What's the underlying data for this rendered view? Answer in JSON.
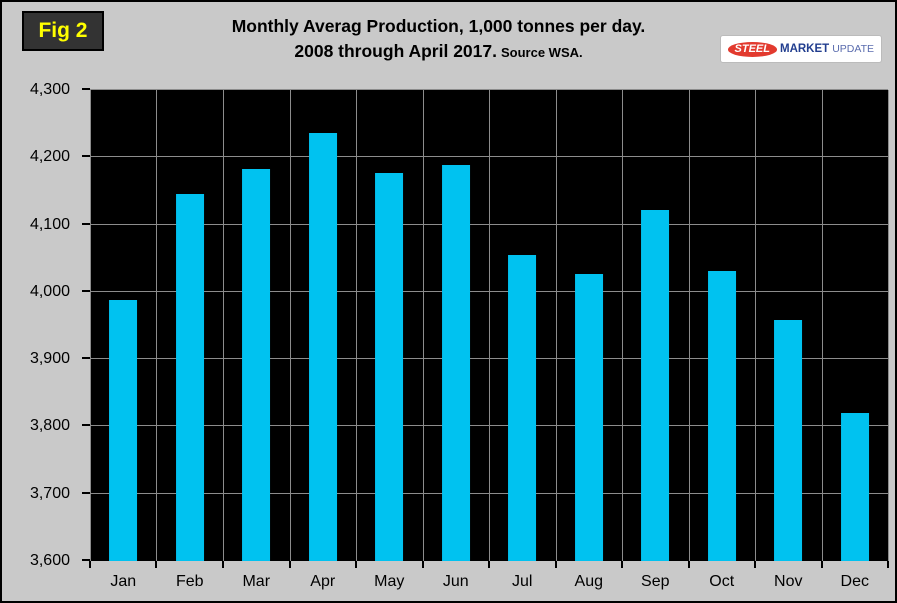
{
  "figure_label": "Fig 2",
  "header": {
    "title_line1": "Monthly Averag Production, 1,000 tonnes per day.",
    "title_line2": "2008 through April 2017.",
    "source": "Source WSA."
  },
  "logo": {
    "steel": "STEEL",
    "market": "MARKET",
    "update": "UPDATE"
  },
  "colors": {
    "bar": "#00C2F0",
    "plot_bg": "#000000",
    "grid": "#8C8C8C",
    "page_bg": "#C9C9C9",
    "fig_label_bg": "#333333",
    "fig_label_text": "#FFFF00"
  },
  "chart_data": {
    "type": "bar",
    "title": "Monthly Averag Production, 1,000 tonnes per day. 2008 through April 2017. Source WSA.",
    "categories": [
      "Jan",
      "Feb",
      "Mar",
      "Apr",
      "May",
      "Jun",
      "Jul",
      "Aug",
      "Sep",
      "Oct",
      "Nov",
      "Dec"
    ],
    "values": [
      3988,
      4146,
      4183,
      4236,
      4176,
      4188,
      4055,
      4026,
      4122,
      4031,
      3958,
      3820
    ],
    "xlabel": "",
    "ylabel": "",
    "ylim": [
      3600,
      4300
    ],
    "ytick_step": 100,
    "ytick_labels": [
      "4,300",
      "4,200",
      "4,100",
      "4,000",
      "3,900",
      "3,800",
      "3,700",
      "3,600"
    ],
    "grid": true,
    "legend": false,
    "bar_width_fraction": 0.42
  }
}
